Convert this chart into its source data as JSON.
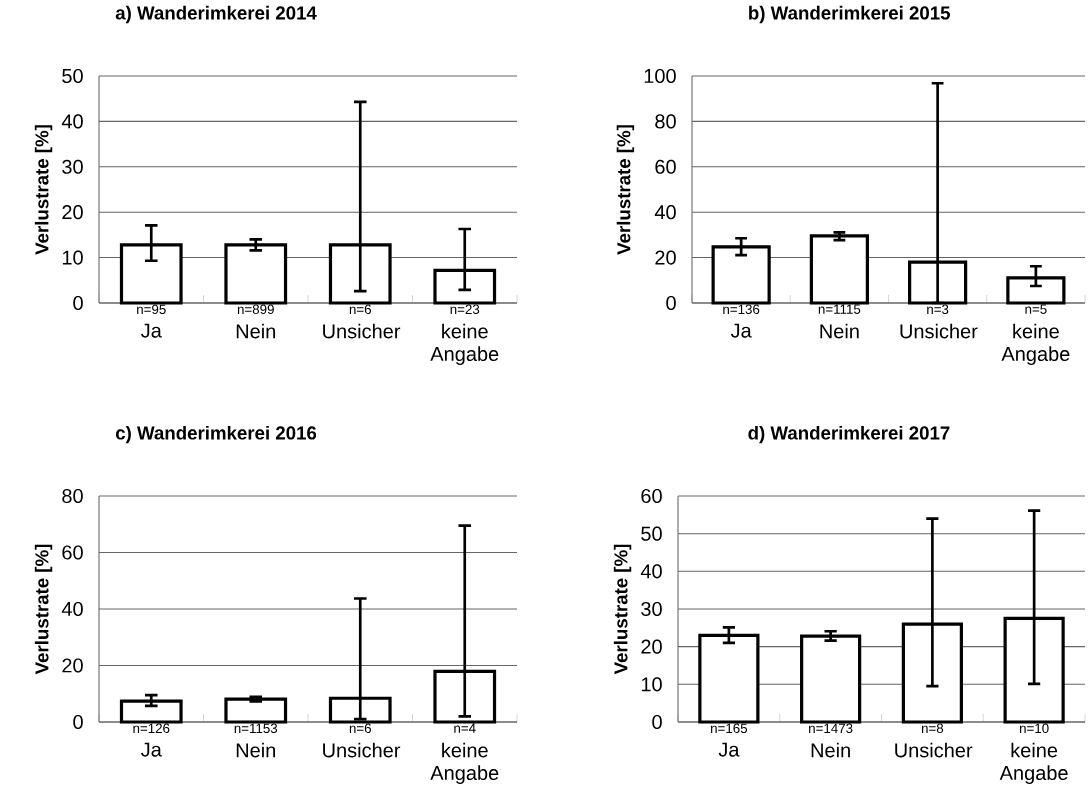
{
  "chart_data": [
    {
      "type": "bar",
      "title": "a) Wanderimkerei 2014",
      "ylabel": "Verlustrate [%]",
      "categories": [
        "Ja",
        "Nein",
        "Unsicher",
        "keine Angabe"
      ],
      "values": [
        12.8,
        12.8,
        12.8,
        7.2
      ],
      "color": "#ffffff",
      "errors": [
        [
          9.3,
          17.1
        ],
        [
          11.6,
          14.0
        ],
        [
          2.6,
          44.3
        ],
        [
          2.9,
          16.3
        ]
      ],
      "ylim": [
        0,
        50
      ],
      "yticks": [
        0,
        10,
        20,
        30,
        40,
        50
      ],
      "grid": "y",
      "annotations": [
        {
          "text": "n=95",
          "x": "Ja",
          "y": 0
        },
        {
          "text": "n=899",
          "x": "Nein",
          "y": 0
        },
        {
          "text": "n=6",
          "x": "Unsicher",
          "y": 0
        },
        {
          "text": "n=23",
          "x": "keine Angabe",
          "y": 0
        }
      ]
    },
    {
      "type": "bar",
      "title": "b) Wanderimkerei 2015",
      "ylabel": "Verlustrate [%]",
      "categories": [
        "Ja",
        "Nein",
        "Unsicher",
        "keine Angabe"
      ],
      "values": [
        24.7,
        29.6,
        18.0,
        11.1
      ],
      "color": "#ffffff",
      "errors": [
        [
          21.1,
          28.5
        ],
        [
          27.7,
          31.1
        ],
        [
          0,
          96.8
        ],
        [
          7.5,
          16.2
        ]
      ],
      "ylim": [
        0,
        100
      ],
      "yticks": [
        0,
        20,
        40,
        60,
        80,
        100
      ],
      "grid": "y",
      "annotations": [
        {
          "text": "n=136",
          "x": "Ja",
          "y": 0
        },
        {
          "text": "n=1115",
          "x": "Nein",
          "y": 0
        },
        {
          "text": "n=3",
          "x": "Unsicher",
          "y": 0
        },
        {
          "text": "n=5",
          "x": "keine Angabe",
          "y": 0
        }
      ]
    },
    {
      "type": "bar",
      "title": "c) Wanderimkerei 2016",
      "ylabel": "Verlustrate [%]",
      "categories": [
        "Ja",
        "Nein",
        "Unsicher",
        "keine Angabe"
      ],
      "values": [
        7.4,
        8.1,
        8.4,
        17.9
      ],
      "color": "#ffffff",
      "errors": [
        [
          5.7,
          9.5
        ],
        [
          7.3,
          8.9
        ],
        [
          1.0,
          43.7
        ],
        [
          2.0,
          69.5
        ]
      ],
      "ylim": [
        0,
        80
      ],
      "yticks": [
        0,
        20,
        40,
        60,
        80
      ],
      "grid": "y",
      "annotations": [
        {
          "text": "n=126",
          "x": "Ja",
          "y": 0
        },
        {
          "text": "n=1153",
          "x": "Nein",
          "y": 0
        },
        {
          "text": "n=6",
          "x": "Unsicher",
          "y": 0
        },
        {
          "text": "n=4",
          "x": "keine Angabe",
          "y": 0
        }
      ]
    },
    {
      "type": "bar",
      "title": "d) Wanderimkerei 2017",
      "ylabel": "Verlustrate [%]",
      "categories": [
        "Ja",
        "Nein",
        "Unsicher",
        "keine Angabe"
      ],
      "values": [
        23.0,
        22.8,
        26.0,
        27.5
      ],
      "color": "#ffffff",
      "errors": [
        [
          21.0,
          25.1
        ],
        [
          21.6,
          24.1
        ],
        [
          9.5,
          54.0
        ],
        [
          10.1,
          56.1
        ]
      ],
      "ylim": [
        0,
        60
      ],
      "yticks": [
        0,
        10,
        20,
        30,
        40,
        50,
        60
      ],
      "grid": "y",
      "annotations": [
        {
          "text": "n=165",
          "x": "Ja",
          "y": 0
        },
        {
          "text": "n=1473",
          "x": "Nein",
          "y": 0
        },
        {
          "text": "n=8",
          "x": "Unsicher",
          "y": 0
        },
        {
          "text": "n=10",
          "x": "keine Angabe",
          "y": 0
        }
      ]
    }
  ]
}
